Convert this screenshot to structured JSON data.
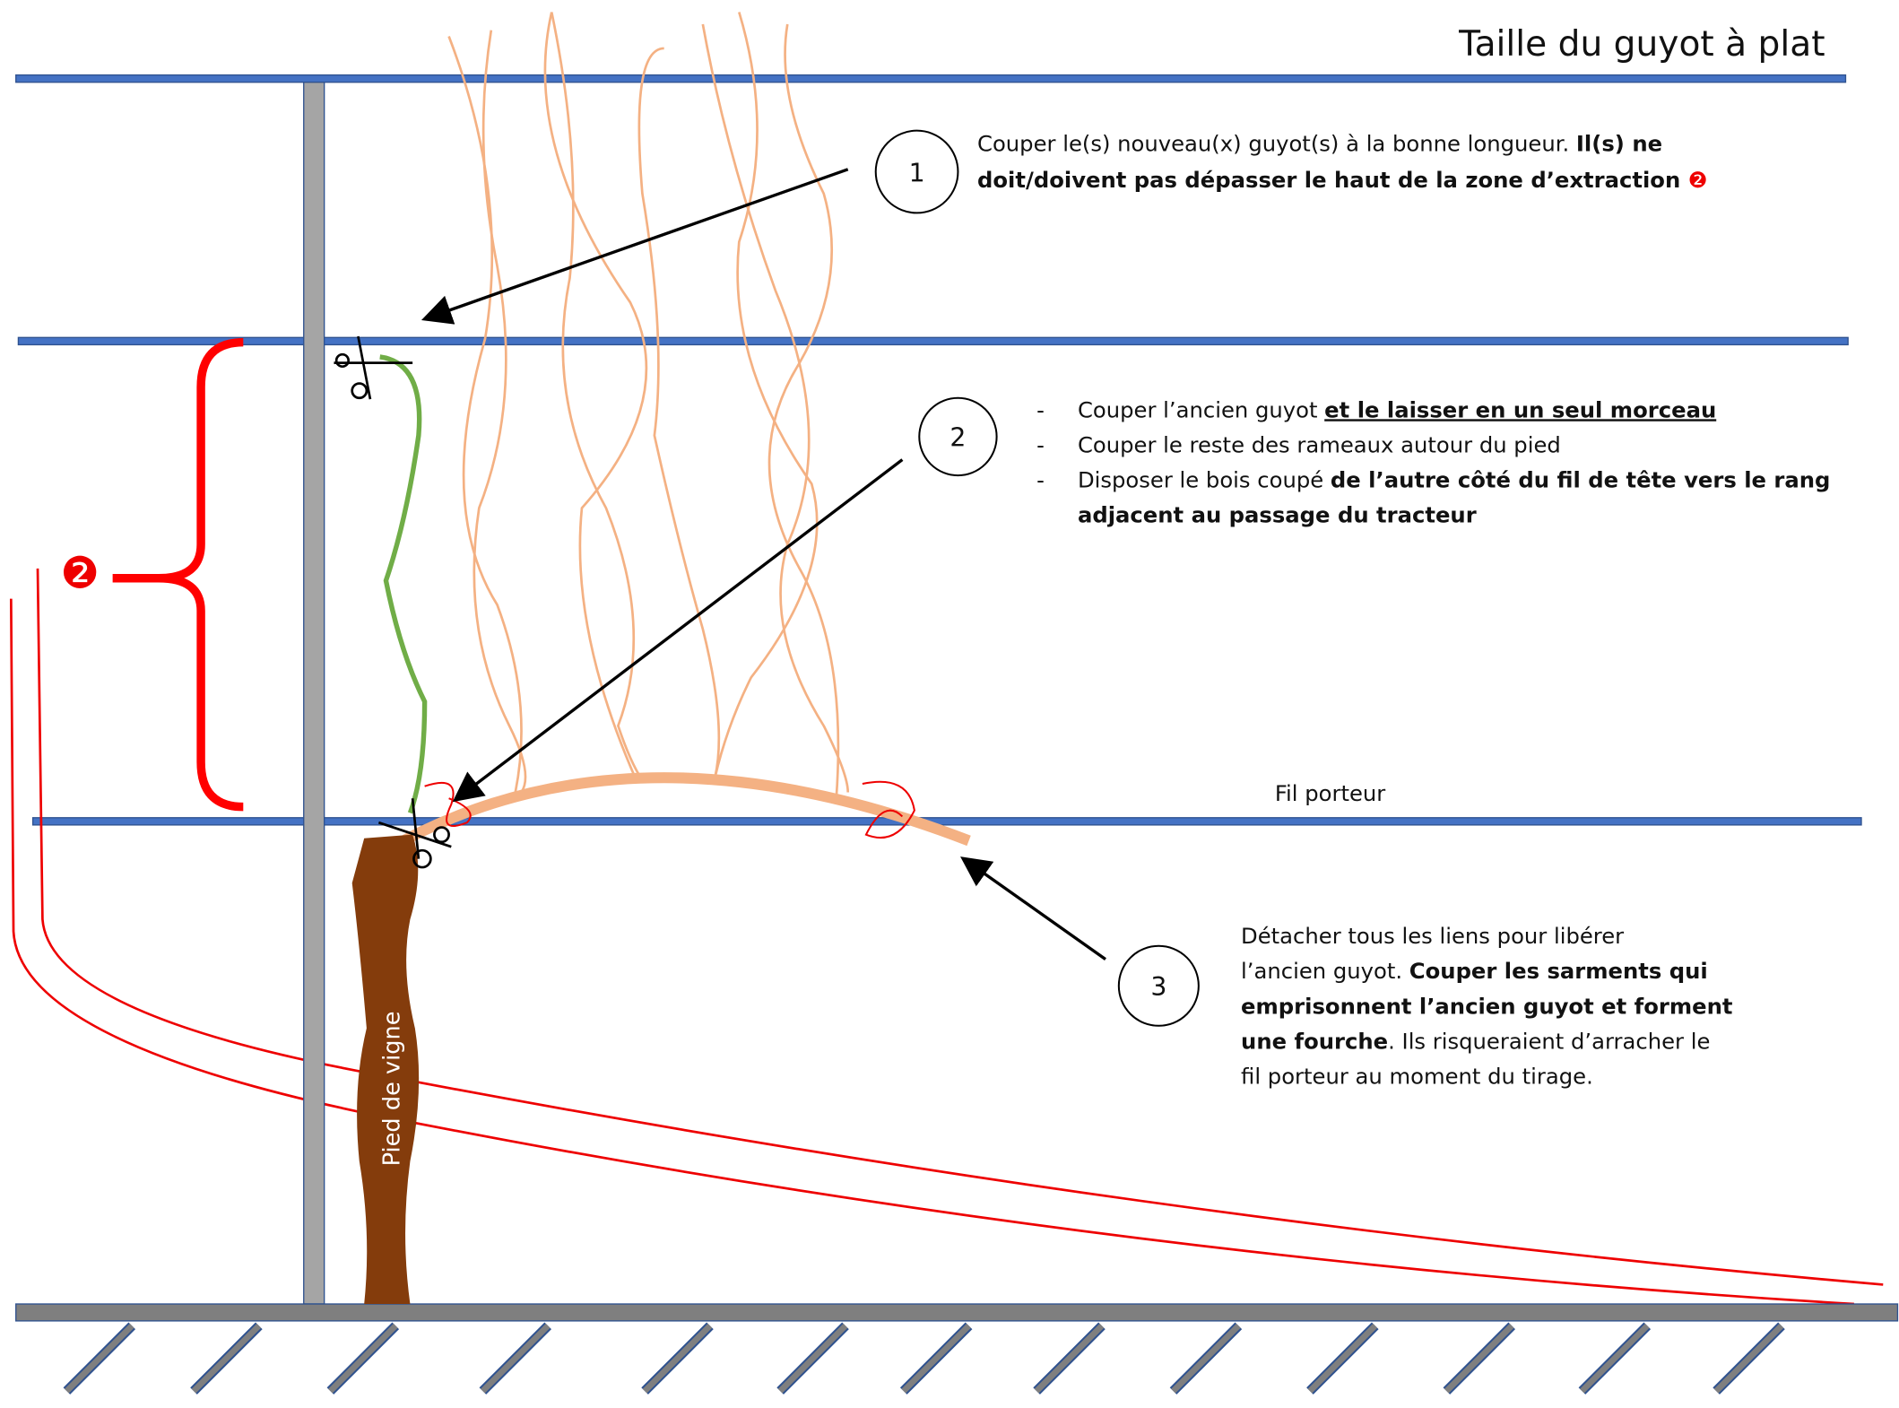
{
  "title": "Taille du guyot à plat",
  "extraction_marker": "❷",
  "wire_label": "Fil porteur",
  "trunk_label": "Pied de vigne",
  "steps": [
    {
      "number": "1",
      "lines": [
        {
          "parts": [
            {
              "text": "Couper le(s) nouveau(x) guyot(s) à la bonne longueur. ",
              "bold": false
            },
            {
              "text": "Il(s) ne",
              "bold": true
            }
          ]
        },
        {
          "parts": [
            {
              "text": "doit/doivent pas dépasser le haut de la zone d’extraction ",
              "bold": true
            }
          ],
          "marker": "❷"
        }
      ]
    },
    {
      "number": "2",
      "bullet": "-",
      "lines": [
        {
          "bulleted": true,
          "parts": [
            {
              "text": "Couper l’ancien guyot ",
              "bold": false
            },
            {
              "text": "et le laisser en un seul morceau",
              "bold": true,
              "underline": true
            }
          ]
        },
        {
          "bulleted": true,
          "parts": [
            {
              "text": "Couper le reste des rameaux autour du pied",
              "bold": false
            }
          ]
        },
        {
          "bulleted": true,
          "parts": [
            {
              "text": "Disposer le bois coupé ",
              "bold": false
            },
            {
              "text": "de l’autre côté du fil de tête vers le rang",
              "bold": true
            }
          ]
        },
        {
          "bulleted": false,
          "parts": [
            {
              "text": "adjacent au passage du tracteur",
              "bold": true
            }
          ]
        }
      ]
    },
    {
      "number": "3",
      "lines": [
        {
          "parts": [
            {
              "text": "Détacher tous les liens pour libérer",
              "bold": false
            }
          ]
        },
        {
          "parts": [
            {
              "text": "l’ancien guyot. ",
              "bold": false
            },
            {
              "text": "Couper les sarments qui",
              "bold": true
            }
          ]
        },
        {
          "parts": [
            {
              "text": "emprisonnent l’ancien guyot et forment",
              "bold": true
            }
          ]
        },
        {
          "parts": [
            {
              "text": "une fourche",
              "bold": true
            },
            {
              "text": ". Ils risqueraient d’arracher le",
              "bold": false
            }
          ]
        },
        {
          "parts": [
            {
              "text": "fil porteur au moment du tirage.",
              "bold": false
            }
          ]
        }
      ]
    }
  ]
}
